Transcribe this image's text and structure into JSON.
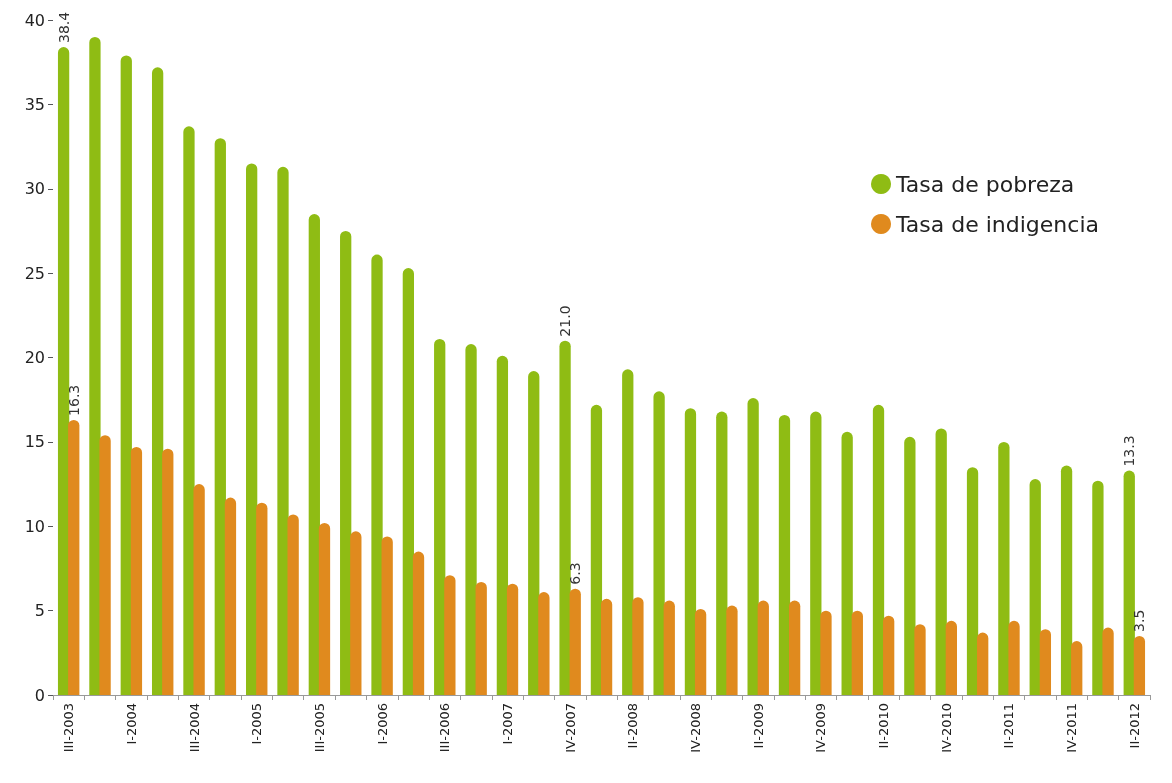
{
  "chart_data": {
    "type": "bar",
    "categories": [
      "III-2003",
      null,
      "I-2004",
      null,
      "III-2004",
      null,
      "I-2005",
      null,
      "III-2005",
      null,
      "I-2006",
      null,
      "III-2006",
      null,
      "I-2007",
      null,
      "IV-2007",
      null,
      "II-2008",
      null,
      "IV-2008",
      null,
      "II-2009",
      null,
      "IV-2009",
      null,
      "II-2010",
      null,
      "IV-2010",
      null,
      "II-2011",
      null,
      "IV-2011",
      null,
      "II-2012"
    ],
    "series": [
      {
        "name": "Tasa de pobreza",
        "color": "#8fbc14",
        "values": [
          38.4,
          39.0,
          37.9,
          37.2,
          33.7,
          33.0,
          31.5,
          31.3,
          28.5,
          27.5,
          26.1,
          25.3,
          21.1,
          20.8,
          20.1,
          19.2,
          21.0,
          17.2,
          19.3,
          18.0,
          17.0,
          16.8,
          17.6,
          16.6,
          16.8,
          15.6,
          17.2,
          15.3,
          15.8,
          13.5,
          15.0,
          12.8,
          13.6,
          12.7,
          13.3
        ],
        "value_labels": [
          "38.4",
          null,
          null,
          null,
          null,
          null,
          null,
          null,
          null,
          null,
          null,
          null,
          null,
          null,
          null,
          null,
          "21.0",
          null,
          null,
          null,
          null,
          null,
          null,
          null,
          null,
          null,
          null,
          null,
          null,
          null,
          null,
          null,
          null,
          null,
          "13.3"
        ]
      },
      {
        "name": "Tasa de indigencia",
        "color": "#e08a1e",
        "values": [
          16.3,
          15.4,
          14.7,
          14.6,
          12.5,
          11.7,
          11.4,
          10.7,
          10.2,
          9.7,
          9.4,
          8.5,
          7.1,
          6.7,
          6.6,
          6.1,
          6.3,
          5.7,
          5.8,
          5.6,
          5.1,
          5.3,
          5.6,
          5.6,
          5.0,
          5.0,
          4.7,
          4.2,
          4.4,
          3.7,
          4.4,
          3.9,
          3.2,
          4.0,
          3.5
        ],
        "value_labels": [
          "16.3",
          null,
          null,
          null,
          null,
          null,
          null,
          null,
          null,
          null,
          null,
          null,
          null,
          null,
          null,
          null,
          "6.3",
          null,
          null,
          null,
          null,
          null,
          null,
          null,
          null,
          null,
          null,
          null,
          null,
          null,
          null,
          null,
          null,
          null,
          "3.5"
        ]
      }
    ],
    "ylim": [
      0,
      40
    ],
    "yticks": [
      0,
      5,
      10,
      15,
      20,
      25,
      30,
      35,
      40
    ],
    "legend": "top right"
  }
}
